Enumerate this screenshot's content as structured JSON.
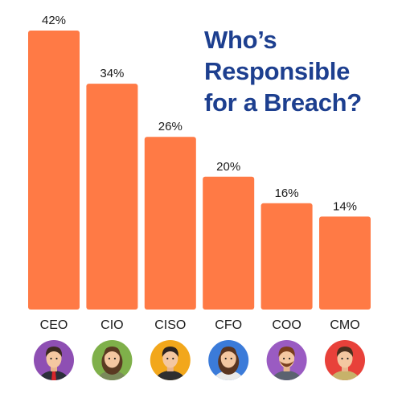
{
  "chart_data": {
    "type": "bar",
    "title_lines": [
      "Who’s",
      "Responsible",
      "for a Breach?"
    ],
    "categories": [
      "CEO",
      "CIO",
      "CISO",
      "CFO",
      "COO",
      "CMO"
    ],
    "values": [
      42,
      34,
      26,
      20,
      16,
      14
    ],
    "value_labels": [
      "42%",
      "34%",
      "26%",
      "20%",
      "16%",
      "14%"
    ],
    "unit": "%",
    "ylim": [
      0,
      42
    ],
    "grid": false,
    "legend": "none",
    "avatar_icons": [
      "ceo-avatar-icon",
      "cio-avatar-icon",
      "ciso-avatar-icon",
      "cfo-avatar-icon",
      "coo-avatar-icon",
      "cmo-avatar-icon"
    ]
  },
  "colors": {
    "bar": "#FF7A45",
    "title": "#1D3F8F",
    "text": "#1a1a1a",
    "avatar_backgrounds": [
      "#8E4FB3",
      "#7FB04A",
      "#F2A71B",
      "#3B7BD9",
      "#9A5BC2",
      "#E8413A"
    ]
  }
}
